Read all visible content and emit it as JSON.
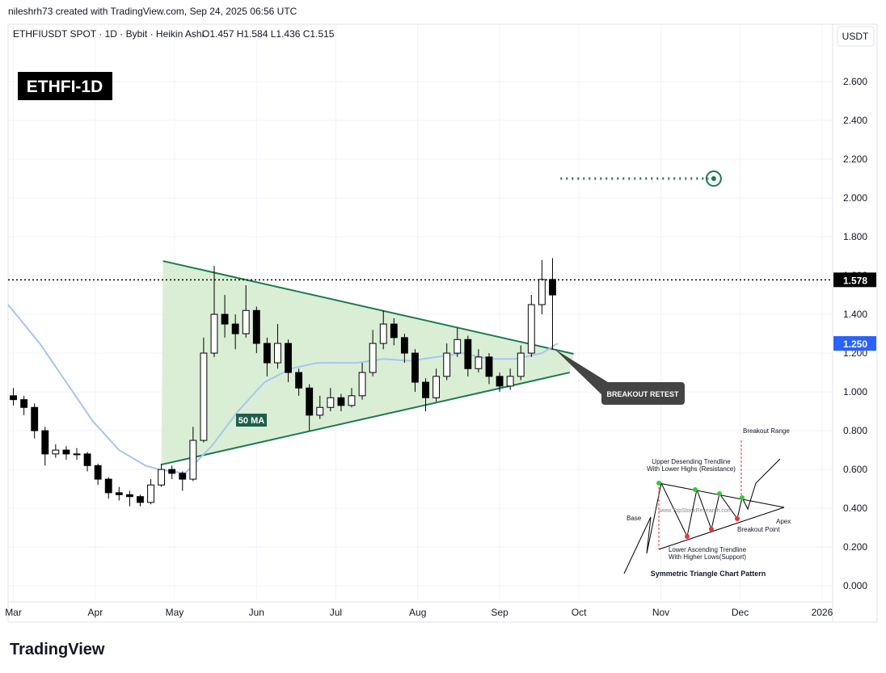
{
  "header": {
    "author_line": "nileshrh73 created with TradingView.com, Sep 24, 2025 06:56 UTC",
    "symbol_line": "ETHFIUSDT SPOT · 1D · Bybit · Heikin Ashi",
    "ohlc_line": "O1.457  H1.584  L1.436  C1.515",
    "currency": "USDT",
    "badge": "ETHFI-1D",
    "logo": "TradingView"
  },
  "chart_data": {
    "type": "candlestick",
    "xlim": [
      -2,
      310
    ],
    "ylim": [
      -0.083,
      2.896
    ],
    "xticks": [
      {
        "value": 0,
        "label": "Mar"
      },
      {
        "value": 31,
        "label": "Apr"
      },
      {
        "value": 61,
        "label": "May"
      },
      {
        "value": 92,
        "label": "Jun"
      },
      {
        "value": 122,
        "label": "Jul"
      },
      {
        "value": 153,
        "label": "Aug"
      },
      {
        "value": 184,
        "label": "Sep"
      },
      {
        "value": 214,
        "label": "Oct"
      },
      {
        "value": 245,
        "label": "Nov"
      },
      {
        "value": 275,
        "label": "Dec"
      },
      {
        "value": 306,
        "label": "2026"
      }
    ],
    "yticks": [
      {
        "value": 0,
        "label": "0.000"
      },
      {
        "value": 0.2,
        "label": "0.200"
      },
      {
        "value": 0.4,
        "label": "0.400"
      },
      {
        "value": 0.6,
        "label": "0.600"
      },
      {
        "value": 0.8,
        "label": "0.800"
      },
      {
        "value": 1,
        "label": "1.000"
      },
      {
        "value": 1.2,
        "label": "1.200"
      },
      {
        "value": 1.4,
        "label": "1.400"
      },
      {
        "value": 1.6,
        "label": "1.600"
      },
      {
        "value": 1.8,
        "label": "1.800"
      },
      {
        "value": 2,
        "label": "2.000"
      },
      {
        "value": 2.2,
        "label": "2.200"
      },
      {
        "value": 2.4,
        "label": "2.400"
      },
      {
        "value": 2.6,
        "label": "2.600"
      }
    ],
    "grid": true,
    "up_color": "#ffffff",
    "down_color": "#000000",
    "x": [
      0,
      4,
      8,
      12,
      16,
      20,
      24,
      28,
      32,
      36,
      40,
      44,
      48,
      52,
      56,
      60,
      64,
      68,
      72,
      76,
      80,
      84,
      88,
      92,
      96,
      100,
      104,
      108,
      112,
      116,
      120,
      124,
      128,
      132,
      136,
      140,
      144,
      148,
      152,
      156,
      160,
      164,
      168,
      172,
      176,
      180,
      184,
      188,
      192,
      196,
      200,
      204
    ],
    "ohlc": [
      [
        0.98,
        1.02,
        0.93,
        0.96
      ],
      [
        0.96,
        0.98,
        0.88,
        0.92
      ],
      [
        0.92,
        0.94,
        0.76,
        0.8
      ],
      [
        0.8,
        0.82,
        0.62,
        0.68
      ],
      [
        0.68,
        0.73,
        0.66,
        0.7
      ],
      [
        0.7,
        0.72,
        0.65,
        0.68
      ],
      [
        0.68,
        0.71,
        0.65,
        0.68
      ],
      [
        0.68,
        0.69,
        0.59,
        0.62
      ],
      [
        0.62,
        0.63,
        0.52,
        0.55
      ],
      [
        0.55,
        0.56,
        0.45,
        0.48
      ],
      [
        0.48,
        0.51,
        0.44,
        0.47
      ],
      [
        0.47,
        0.49,
        0.41,
        0.46
      ],
      [
        0.46,
        0.47,
        0.41,
        0.43
      ],
      [
        0.43,
        0.55,
        0.42,
        0.52
      ],
      [
        0.52,
        0.63,
        0.51,
        0.6
      ],
      [
        0.6,
        0.62,
        0.55,
        0.58
      ],
      [
        0.58,
        0.59,
        0.49,
        0.55
      ],
      [
        0.55,
        0.82,
        0.54,
        0.75
      ],
      [
        0.75,
        1.28,
        0.74,
        1.2
      ],
      [
        1.2,
        1.65,
        1.18,
        1.4
      ],
      [
        1.4,
        1.5,
        1.28,
        1.35
      ],
      [
        1.35,
        1.4,
        1.22,
        1.3
      ],
      [
        1.3,
        1.55,
        1.28,
        1.42
      ],
      [
        1.42,
        1.44,
        1.2,
        1.25
      ],
      [
        1.25,
        1.28,
        1.08,
        1.15
      ],
      [
        1.15,
        1.35,
        1.12,
        1.25
      ],
      [
        1.25,
        1.27,
        1.05,
        1.1
      ],
      [
        1.1,
        1.12,
        0.98,
        1.02
      ],
      [
        1.02,
        1.04,
        0.8,
        0.88
      ],
      [
        0.88,
        0.98,
        0.86,
        0.92
      ],
      [
        0.92,
        1.02,
        0.9,
        0.97
      ],
      [
        0.97,
        0.99,
        0.9,
        0.93
      ],
      [
        0.93,
        1.02,
        0.92,
        0.98
      ],
      [
        0.98,
        1.15,
        0.96,
        1.1
      ],
      [
        1.1,
        1.32,
        1.08,
        1.25
      ],
      [
        1.25,
        1.42,
        1.22,
        1.35
      ],
      [
        1.35,
        1.38,
        1.24,
        1.28
      ],
      [
        1.28,
        1.3,
        1.15,
        1.2
      ],
      [
        1.2,
        1.22,
        1.0,
        1.05
      ],
      [
        1.05,
        1.07,
        0.9,
        0.97
      ],
      [
        0.97,
        1.12,
        0.95,
        1.08
      ],
      [
        1.08,
        1.25,
        1.06,
        1.2
      ],
      [
        1.2,
        1.33,
        1.18,
        1.27
      ],
      [
        1.27,
        1.29,
        1.08,
        1.12
      ],
      [
        1.12,
        1.22,
        1.1,
        1.18
      ],
      [
        1.18,
        1.2,
        1.04,
        1.08
      ],
      [
        1.08,
        1.1,
        1.0,
        1.03
      ],
      [
        1.03,
        1.12,
        1.01,
        1.08
      ],
      [
        1.08,
        1.24,
        1.06,
        1.2
      ],
      [
        1.2,
        1.5,
        1.18,
        1.45
      ],
      [
        1.45,
        1.68,
        1.4,
        1.58
      ],
      [
        1.58,
        1.69,
        1.22,
        1.5
      ]
    ],
    "ma": {
      "name": "50 MA",
      "color": "#a9c4f0",
      "x": [
        -2,
        10,
        20,
        30,
        40,
        50,
        55,
        65,
        75,
        85,
        95,
        105,
        115,
        130,
        140,
        150,
        160,
        170,
        180,
        190,
        200,
        206
      ],
      "values": [
        1.45,
        1.25,
        1.05,
        0.85,
        0.7,
        0.62,
        0.6,
        0.58,
        0.72,
        0.9,
        1.05,
        1.12,
        1.15,
        1.15,
        1.17,
        1.16,
        1.18,
        1.2,
        1.17,
        1.17,
        1.2,
        1.25
      ]
    },
    "triangle": {
      "color": "#1e7a4e",
      "fill": "#d6ecd2",
      "upper": {
        "x": [
          56.6,
          212
        ],
        "values": [
          1.675,
          1.196
        ]
      },
      "lower": {
        "x": [
          56,
          210.5
        ],
        "values": [
          0.625,
          1.1
        ]
      }
    },
    "price_line": {
      "value": 1.578,
      "label": "1.578",
      "color": "#000000"
    },
    "ma_label": {
      "value": 1.25,
      "label": "1.250",
      "color": "#2962ff"
    },
    "target": {
      "value": 2.1,
      "x": [
        207,
        263,
        265
      ],
      "color": "#1e7a4e"
    },
    "annotations": [
      "BREAKOUT RETEST"
    ]
  },
  "inset": {
    "texts": [
      "Breakout Range",
      "Upper Desending Trendline",
      "With Lower Highs (Resistance)",
      "www.TopStockResearch.com",
      "Base",
      "Apex",
      "Breakout Point",
      "Lower Ascending Trendline",
      "With Higher Lows(Support)",
      "Symmetric Triangle Chart Pattern"
    ]
  }
}
